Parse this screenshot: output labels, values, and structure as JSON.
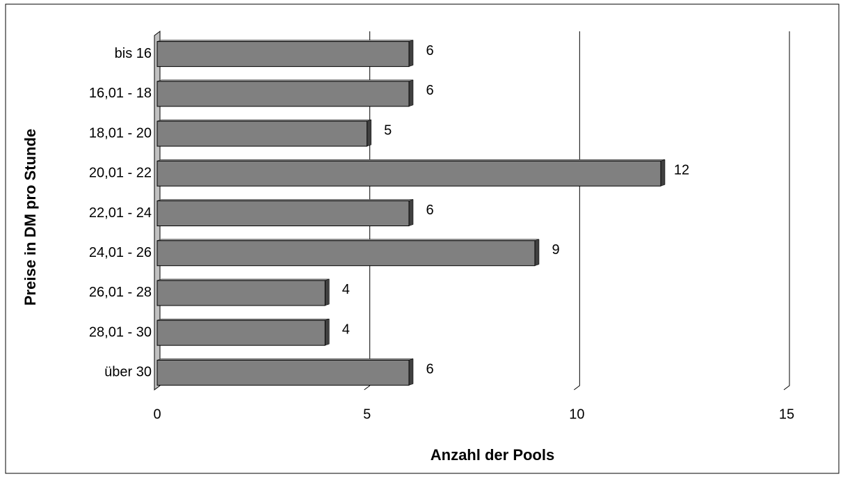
{
  "chart_data": {
    "type": "bar",
    "orientation": "horizontal",
    "x_label": "Anzahl der Pools",
    "y_label": "Preise in DM pro Stunde",
    "categories": [
      "bis 16",
      "16,01 - 18",
      "18,01 - 20",
      "20,01 - 22",
      "22,01 - 24",
      "24,01 - 26",
      "26,01 - 28",
      "28,01 - 30",
      "über 30"
    ],
    "values": [
      6,
      6,
      5,
      12,
      6,
      9,
      4,
      4,
      6
    ],
    "color": "#808080",
    "xlim": [
      0,
      15
    ],
    "xticks": [
      0,
      5,
      10,
      15
    ],
    "grid": true
  }
}
